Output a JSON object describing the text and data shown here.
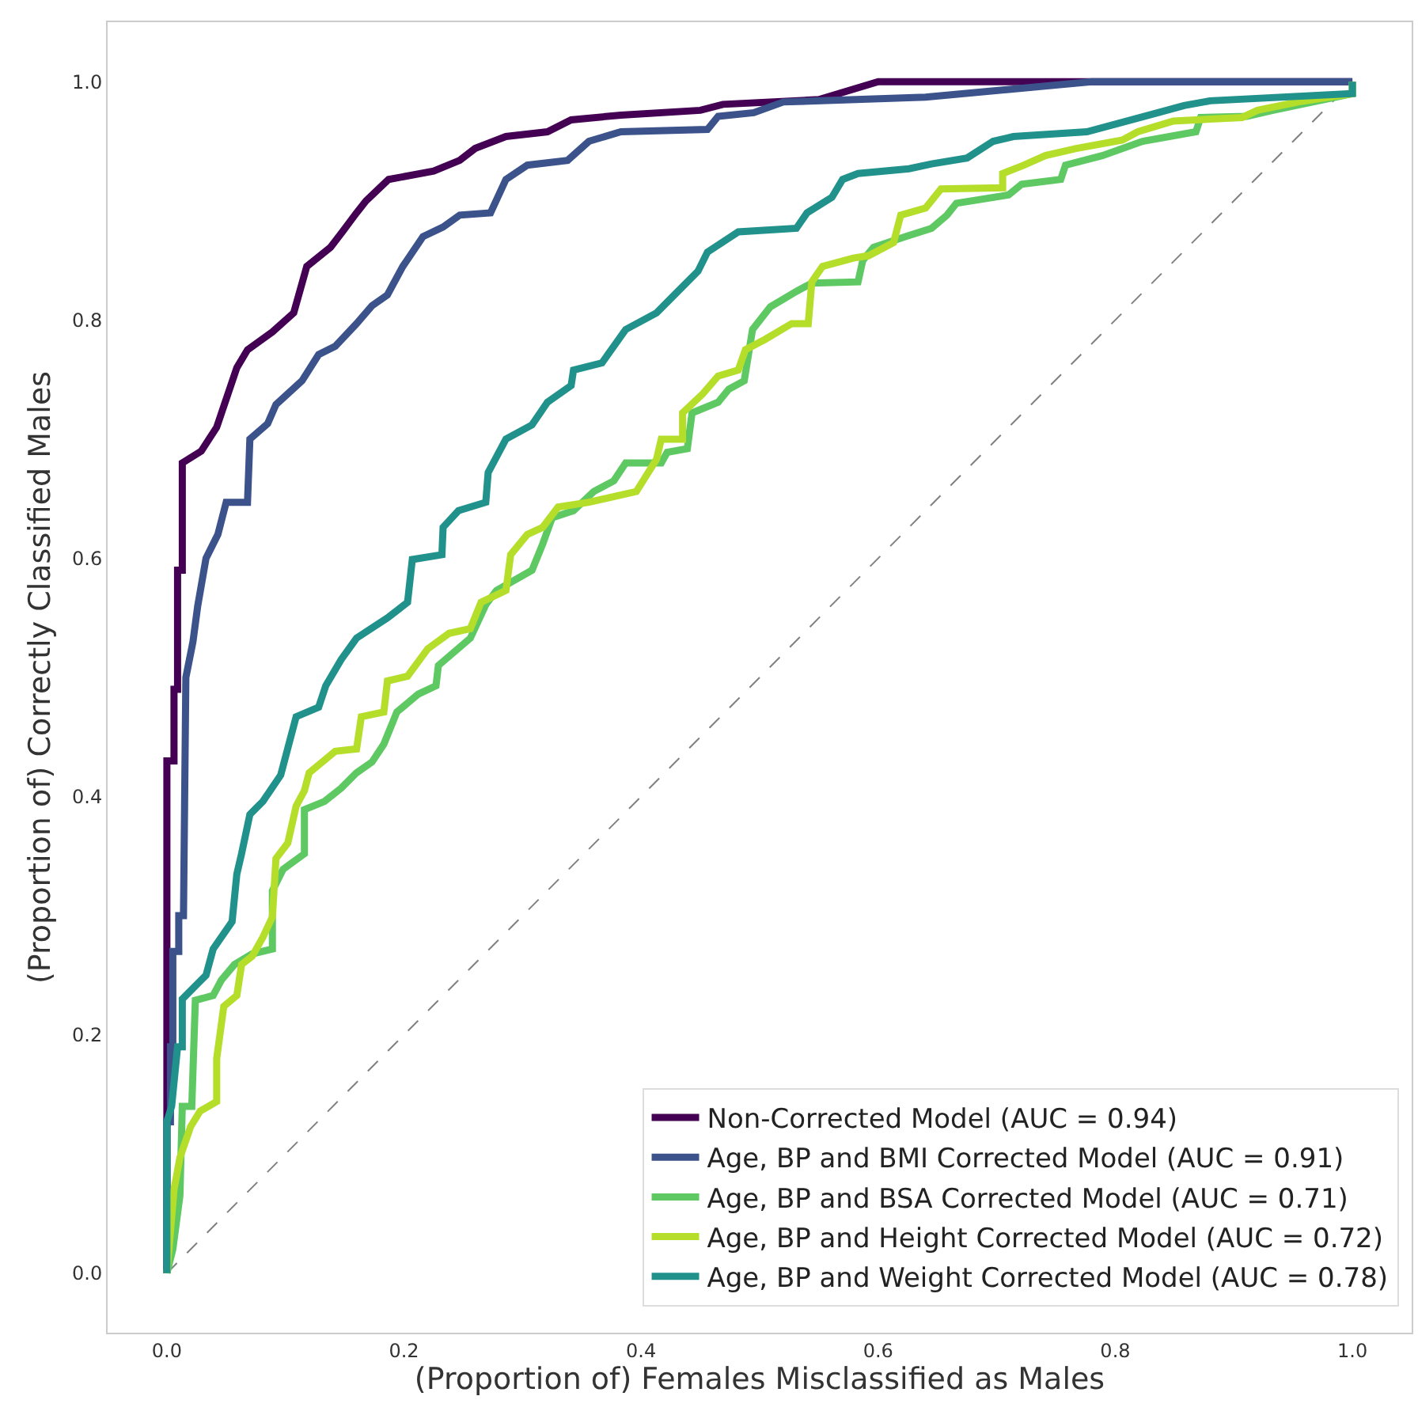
{
  "chart_data": {
    "type": "line",
    "xlabel": "(Proportion of) Females Misclassified as Males",
    "ylabel": "(Proportion of) Correctly Classified Males",
    "xlim": [
      -0.05,
      1.05
    ],
    "ylim": [
      -0.05,
      1.05
    ],
    "xticks": [
      {
        "value": 0,
        "label": "0.0"
      },
      0.2,
      0.4,
      0.6,
      0.8,
      {
        "value": 1,
        "label": "1.0"
      }
    ],
    "yticks": [
      {
        "value": 0,
        "label": "0.0"
      },
      0.2,
      0.4,
      0.6,
      0.8,
      {
        "value": 1,
        "label": "1.0"
      }
    ],
    "legend": "bottom right",
    "line_style": "solid",
    "series": [
      {
        "name": null,
        "color": "#808080",
        "line_style": "dashed",
        "x": [
          0,
          1
        ],
        "values": [
          0,
          1
        ]
      },
      {
        "name": "Non-Corrected Model (AUC = 0.94)",
        "color": "#440154",
        "x": [
          0,
          0,
          0.006,
          0.006,
          0.009,
          0.009,
          0.013,
          0.013,
          0.029,
          0.042,
          0.059,
          0.068,
          0.089,
          0.107,
          0.118,
          0.138,
          0.148,
          0.16,
          0.168,
          0.187,
          0.225,
          0.247,
          0.26,
          0.286,
          0.321,
          0.341,
          0.383,
          0.45,
          0.469,
          0.55,
          0.6,
          1
        ],
        "values": [
          0,
          0.43,
          0.43,
          0.49,
          0.49,
          0.59,
          0.59,
          0.68,
          0.69,
          0.71,
          0.76,
          0.775,
          0.79,
          0.806,
          0.845,
          0.861,
          0.874,
          0.89,
          0.9,
          0.918,
          0.925,
          0.934,
          0.944,
          0.954,
          0.958,
          0.968,
          0.972,
          0.976,
          0.981,
          0.985,
          1,
          1
        ]
      },
      {
        "name": "Age, BP and BMI Corrected Model (AUC = 0.91)",
        "color": "#3b528b",
        "x": [
          0,
          0,
          0.003,
          0.003,
          0.005,
          0.005,
          0.01,
          0.01,
          0.014,
          0.016,
          0.022,
          0.026,
          0.033,
          0.043,
          0.05,
          0.068,
          0.07,
          0.085,
          0.092,
          0.114,
          0.128,
          0.142,
          0.16,
          0.173,
          0.186,
          0.199,
          0.216,
          0.233,
          0.247,
          0.273,
          0.286,
          0.304,
          0.338,
          0.356,
          0.383,
          0.456,
          0.465,
          0.495,
          0.52,
          0.64,
          0.78,
          1
        ],
        "values": [
          0,
          0.127,
          0.127,
          0.19,
          0.19,
          0.27,
          0.27,
          0.3,
          0.3,
          0.5,
          0.53,
          0.56,
          0.6,
          0.62,
          0.647,
          0.647,
          0.7,
          0.713,
          0.729,
          0.749,
          0.771,
          0.778,
          0.797,
          0.812,
          0.821,
          0.845,
          0.87,
          0.878,
          0.888,
          0.89,
          0.918,
          0.93,
          0.934,
          0.95,
          0.958,
          0.96,
          0.971,
          0.974,
          0.983,
          0.987,
          1,
          1
        ]
      },
      {
        "name": "Age, BP and BSA Corrected Model (AUC = 0.71)",
        "color": "#5ec962",
        "x": [
          0,
          0.005,
          0.011,
          0.013,
          0.021,
          0.024,
          0.039,
          0.046,
          0.057,
          0.072,
          0.089,
          0.089,
          0.098,
          0.116,
          0.116,
          0.133,
          0.147,
          0.16,
          0.173,
          0.183,
          0.194,
          0.212,
          0.227,
          0.229,
          0.256,
          0.269,
          0.278,
          0.308,
          0.317,
          0.325,
          0.343,
          0.36,
          0.377,
          0.387,
          0.417,
          0.422,
          0.439,
          0.443,
          0.465,
          0.474,
          0.487,
          0.494,
          0.509,
          0.531,
          0.544,
          0.583,
          0.587,
          0.596,
          0.623,
          0.645,
          0.658,
          0.666,
          0.71,
          0.721,
          0.754,
          0.758,
          0.789,
          0.823,
          0.868,
          0.872,
          0.911,
          0.933,
          1,
          1
        ],
        "values": [
          0,
          0.02,
          0.065,
          0.14,
          0.14,
          0.229,
          0.233,
          0.246,
          0.259,
          0.268,
          0.272,
          0.321,
          0.339,
          0.352,
          0.389,
          0.396,
          0.407,
          0.42,
          0.429,
          0.444,
          0.471,
          0.486,
          0.493,
          0.51,
          0.533,
          0.561,
          0.573,
          0.59,
          0.612,
          0.634,
          0.64,
          0.656,
          0.665,
          0.68,
          0.68,
          0.689,
          0.692,
          0.722,
          0.731,
          0.742,
          0.749,
          0.792,
          0.811,
          0.824,
          0.831,
          0.832,
          0.85,
          0.861,
          0.87,
          0.877,
          0.888,
          0.898,
          0.905,
          0.914,
          0.918,
          0.93,
          0.938,
          0.95,
          0.958,
          0.97,
          0.971,
          0.976,
          0.99,
          1
        ]
      },
      {
        "name": "Age, BP and Height Corrected Model (AUC = 0.72)",
        "color": "#b5de2b",
        "x": [
          0,
          0.006,
          0.011,
          0.02,
          0.028,
          0.042,
          0.042,
          0.048,
          0.059,
          0.063,
          0.072,
          0.081,
          0.089,
          0.092,
          0.102,
          0.109,
          0.116,
          0.12,
          0.142,
          0.16,
          0.164,
          0.183,
          0.186,
          0.203,
          0.22,
          0.238,
          0.256,
          0.265,
          0.286,
          0.29,
          0.304,
          0.317,
          0.33,
          0.356,
          0.396,
          0.413,
          0.417,
          0.435,
          0.435,
          0.452,
          0.465,
          0.482,
          0.488,
          0.505,
          0.527,
          0.541,
          0.544,
          0.553,
          0.579,
          0.592,
          0.613,
          0.619,
          0.64,
          0.653,
          0.705,
          0.705,
          0.723,
          0.741,
          0.767,
          0.806,
          0.819,
          0.849,
          0.907,
          0.92,
          0.954,
          1,
          1
        ],
        "values": [
          0,
          0.07,
          0.097,
          0.123,
          0.136,
          0.144,
          0.18,
          0.224,
          0.233,
          0.259,
          0.266,
          0.282,
          0.299,
          0.348,
          0.361,
          0.392,
          0.405,
          0.42,
          0.438,
          0.44,
          0.467,
          0.471,
          0.497,
          0.501,
          0.524,
          0.537,
          0.541,
          0.563,
          0.573,
          0.603,
          0.62,
          0.626,
          0.643,
          0.647,
          0.656,
          0.683,
          0.7,
          0.7,
          0.722,
          0.738,
          0.753,
          0.758,
          0.775,
          0.784,
          0.797,
          0.797,
          0.832,
          0.845,
          0.852,
          0.854,
          0.865,
          0.888,
          0.894,
          0.91,
          0.911,
          0.923,
          0.93,
          0.938,
          0.944,
          0.951,
          0.958,
          0.967,
          0.97,
          0.976,
          0.983,
          0.99,
          1
        ]
      },
      {
        "name": "Age, BP and Weight Corrected Model (AUC = 0.78)",
        "color": "#21918c",
        "x": [
          0,
          0,
          0.004,
          0.009,
          0.013,
          0.013,
          0.033,
          0.039,
          0.055,
          0.059,
          0.063,
          0.07,
          0.081,
          0.096,
          0.109,
          0.128,
          0.134,
          0.147,
          0.16,
          0.186,
          0.203,
          0.207,
          0.232,
          0.233,
          0.246,
          0.269,
          0.271,
          0.286,
          0.308,
          0.321,
          0.341,
          0.343,
          0.367,
          0.387,
          0.413,
          0.426,
          0.448,
          0.456,
          0.482,
          0.531,
          0.54,
          0.561,
          0.57,
          0.583,
          0.626,
          0.645,
          0.675,
          0.697,
          0.714,
          0.776,
          0.81,
          0.836,
          0.858,
          0.88,
          1,
          1
        ],
        "values": [
          0,
          0.127,
          0.14,
          0.19,
          0.19,
          0.23,
          0.25,
          0.272,
          0.295,
          0.335,
          0.352,
          0.385,
          0.396,
          0.418,
          0.467,
          0.475,
          0.493,
          0.515,
          0.533,
          0.55,
          0.563,
          0.599,
          0.603,
          0.626,
          0.64,
          0.647,
          0.672,
          0.7,
          0.712,
          0.731,
          0.745,
          0.758,
          0.764,
          0.792,
          0.806,
          0.819,
          0.841,
          0.857,
          0.874,
          0.877,
          0.89,
          0.903,
          0.918,
          0.923,
          0.927,
          0.931,
          0.936,
          0.95,
          0.954,
          0.958,
          0.967,
          0.974,
          0.98,
          0.984,
          0.99,
          1
        ]
      }
    ]
  }
}
